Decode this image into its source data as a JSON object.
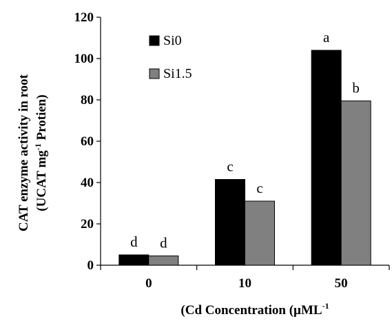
{
  "chart_data": {
    "type": "bar",
    "categories": [
      "0",
      "10",
      "50"
    ],
    "series": [
      {
        "name": "Si0",
        "values": [
          5,
          41.5,
          104
        ],
        "labels": [
          "d",
          "c",
          "a"
        ],
        "color": "#000000"
      },
      {
        "name": "Si1.5",
        "values": [
          4.5,
          31,
          79.5
        ],
        "labels": [
          "d",
          "c",
          "b"
        ],
        "color": "#808080"
      }
    ],
    "title": "",
    "xlabel": "(Cd Concentration (µML",
    "xlabel_sup": "-1",
    "ylabel_line1": "CAT enzyme activity in root",
    "ylabel_line2_pre": "(UCAT mg",
    "ylabel_line2_sup": "-1",
    "ylabel_line2_post": " Protien)",
    "ylim": [
      0,
      120
    ],
    "yticks": [
      "0",
      "20",
      "40",
      "60",
      "80",
      "100",
      "120"
    ],
    "grid": false,
    "legend_position": "top-left"
  }
}
